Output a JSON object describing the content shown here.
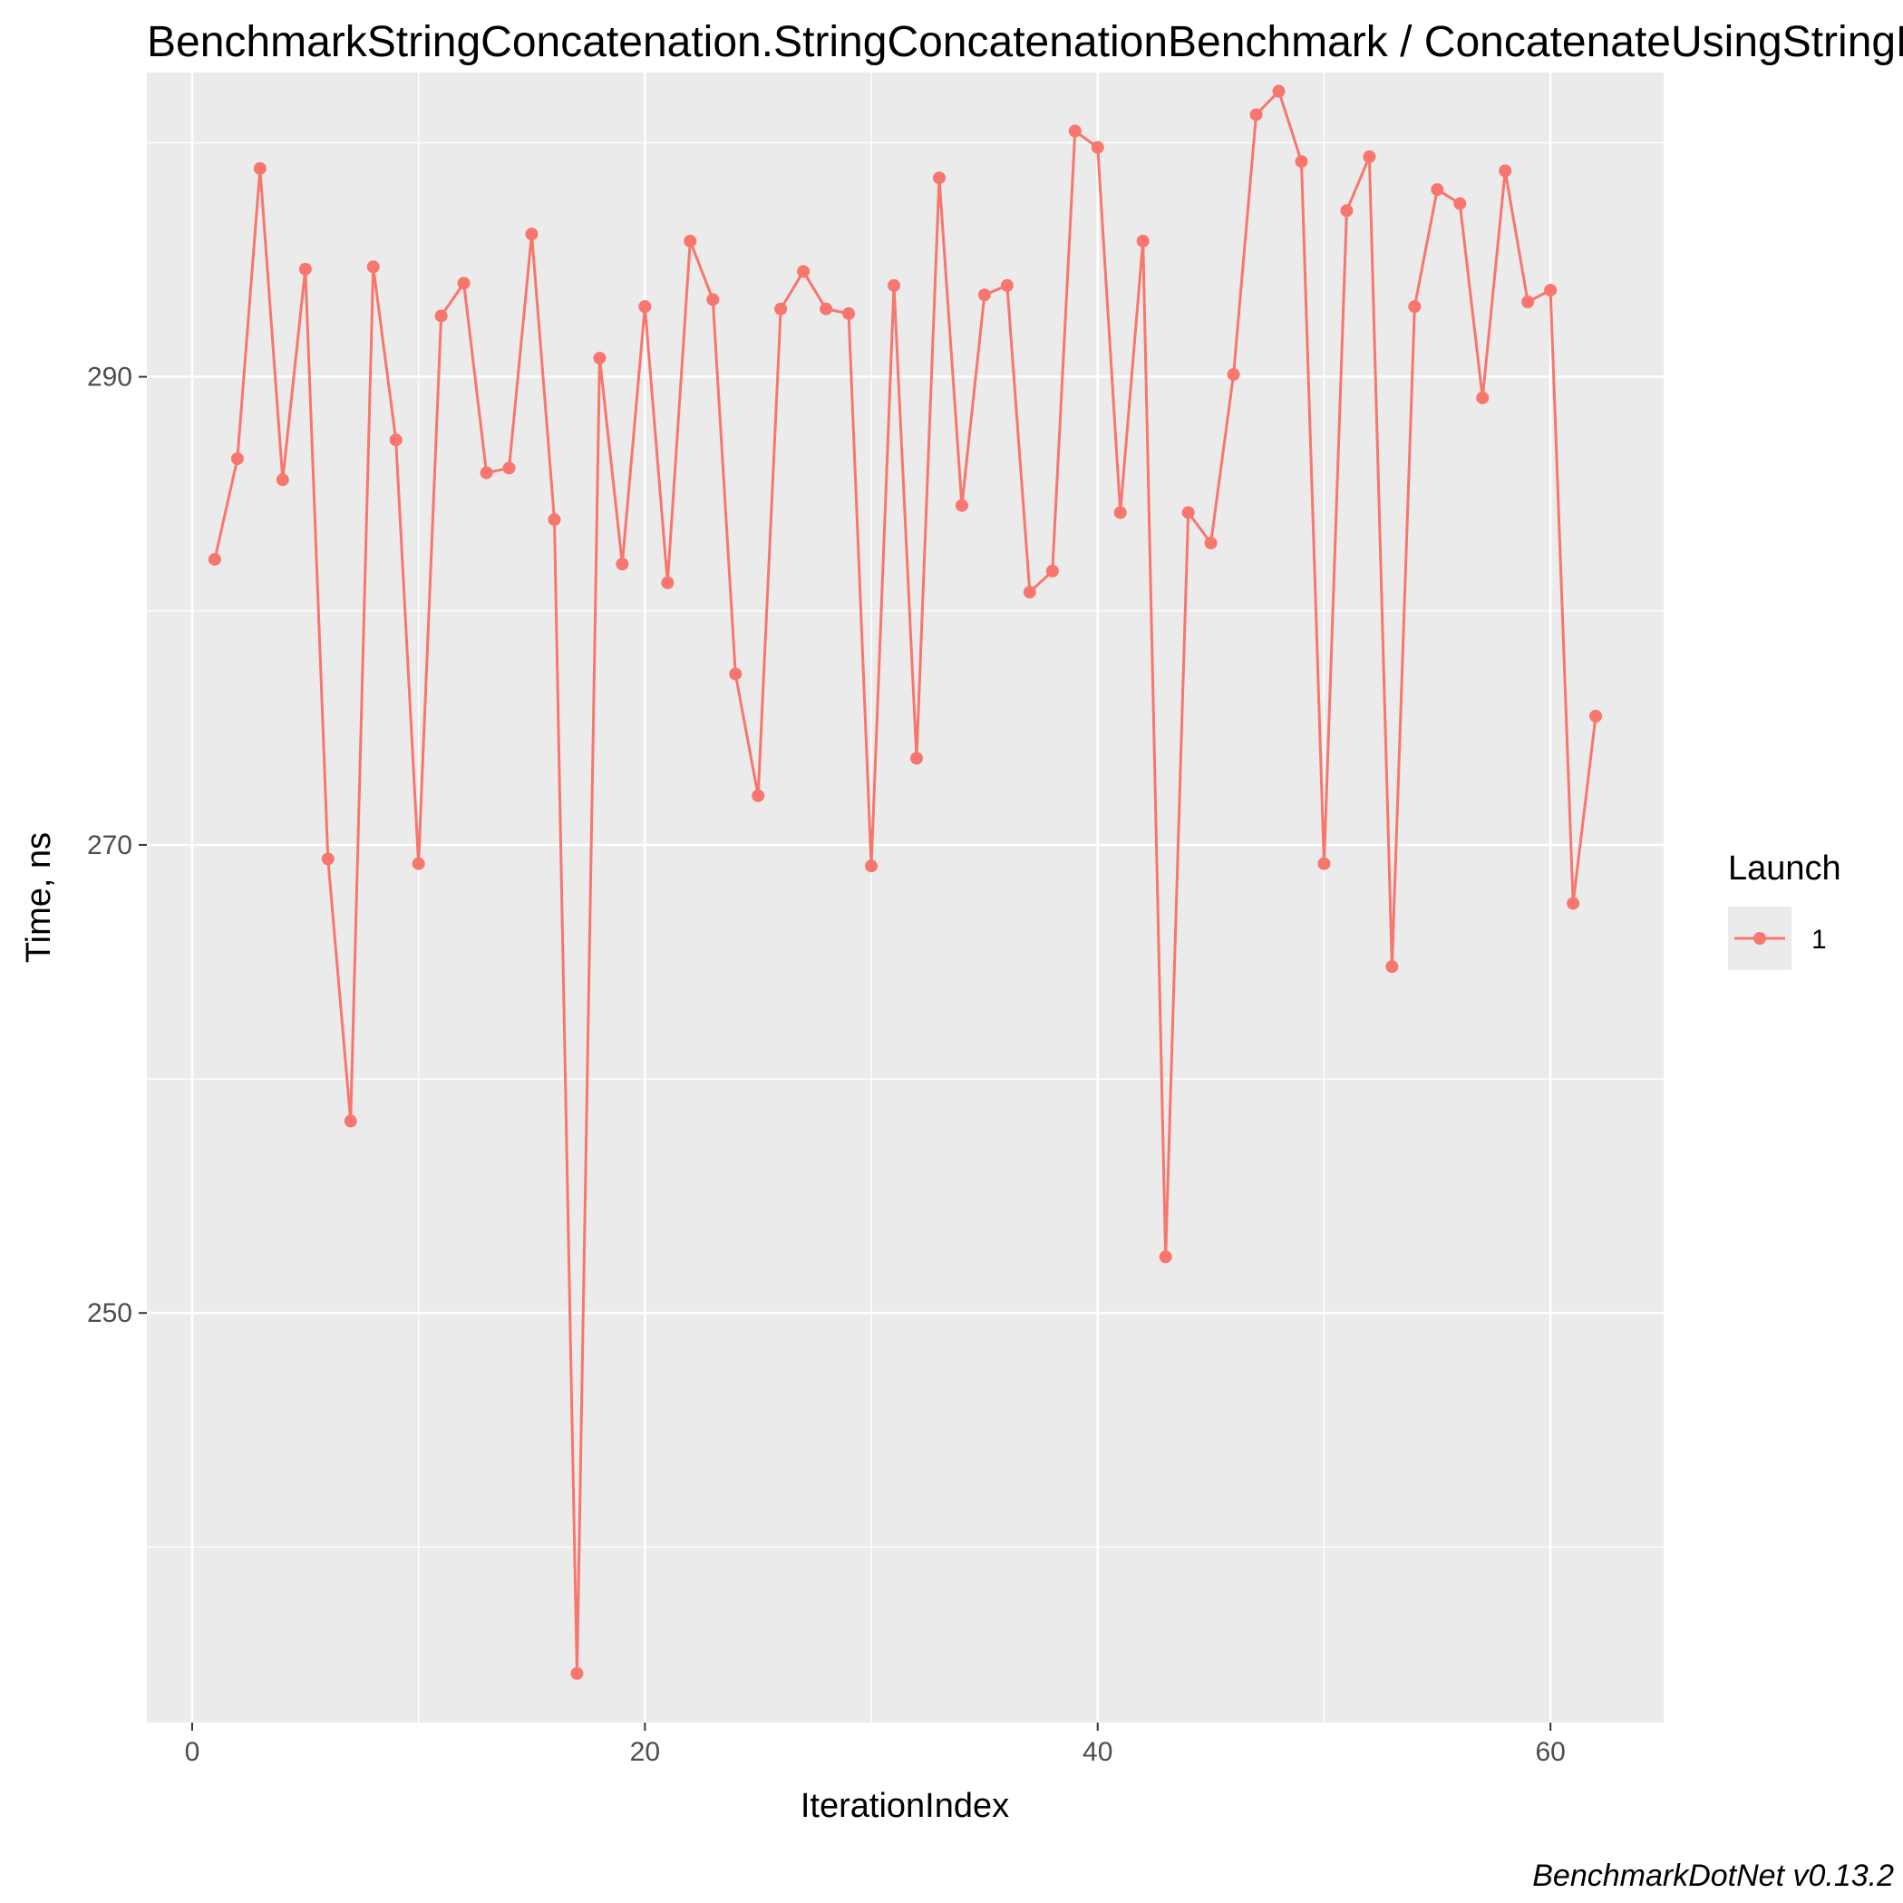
{
  "chart_data": {
    "type": "line",
    "title": "BenchmarkStringConcatenation.StringConcatenationBenchmark / ConcatenateUsingStringBuilderWithCapacity",
    "xlabel": "IterationIndex",
    "ylabel": "Time, ns",
    "caption": "BenchmarkDotNet v0.13.2",
    "xlim": [
      -2,
      65
    ],
    "ylim": [
      232.5,
      303
    ],
    "x_ticks": [
      0,
      20,
      40,
      60
    ],
    "y_ticks": [
      250,
      270,
      290
    ],
    "grid": true,
    "legend": {
      "title": "Launch",
      "position": "right"
    },
    "colors": {
      "series": "#f8766d",
      "panel": "#ebebeb",
      "grid": "#ffffff"
    },
    "series": [
      {
        "name": "1",
        "x": [
          1,
          2,
          3,
          4,
          5,
          6,
          7,
          8,
          9,
          10,
          11,
          12,
          13,
          14,
          15,
          16,
          17,
          18,
          19,
          20,
          21,
          22,
          23,
          24,
          25,
          26,
          27,
          28,
          29,
          30,
          31,
          32,
          33,
          34,
          35,
          36,
          37,
          38,
          39,
          40,
          41,
          42,
          43,
          44,
          45,
          46,
          47,
          48,
          49,
          50,
          51,
          52,
          53,
          54,
          55,
          56,
          57,
          58,
          59,
          60,
          61,
          62
        ],
        "values": [
          282.2,
          286.5,
          298.9,
          285.6,
          294.6,
          269.4,
          258.2,
          294.7,
          287.3,
          269.2,
          292.6,
          294.0,
          285.9,
          286.1,
          296.1,
          283.9,
          234.6,
          290.8,
          282.0,
          293.0,
          281.2,
          295.8,
          293.3,
          277.3,
          272.1,
          292.9,
          294.5,
          292.9,
          292.7,
          269.1,
          293.9,
          273.7,
          298.5,
          284.5,
          293.5,
          293.9,
          280.8,
          281.7,
          300.5,
          299.8,
          284.2,
          295.8,
          252.4,
          284.2,
          282.9,
          290.1,
          301.2,
          302.2,
          299.2,
          269.2,
          297.1,
          299.4,
          264.8,
          293.0,
          298.0,
          297.4,
          289.1,
          298.8,
          293.2,
          293.7,
          267.5,
          275.5
        ]
      }
    ]
  }
}
